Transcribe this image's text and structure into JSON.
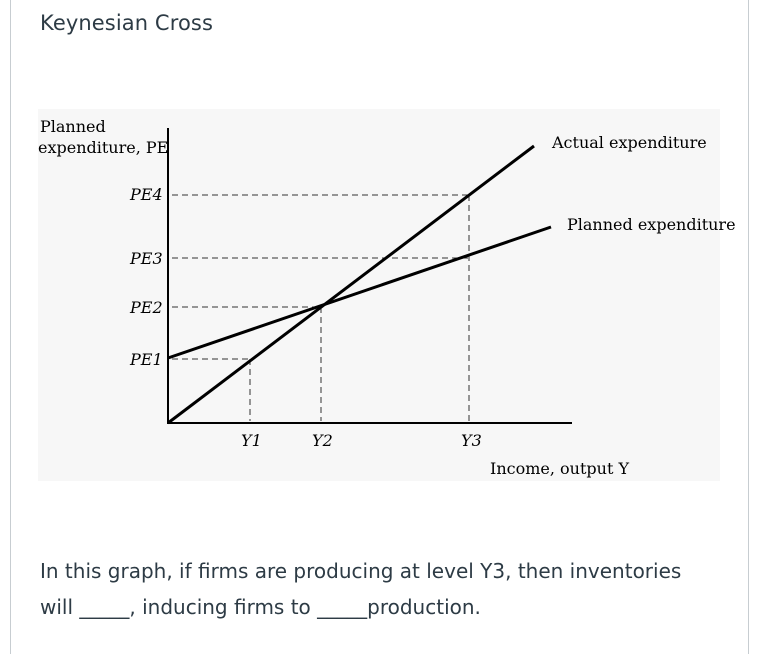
{
  "page": {
    "title": "Keynesian Cross"
  },
  "diagram": {
    "y_axis_label_line1": "Planned",
    "y_axis_label_line2": "expenditure, PE",
    "x_axis_label": "Income, output Y",
    "lines": {
      "actual": "Actual expenditure",
      "planned": "Planned expenditure"
    },
    "y_ticks": [
      "PE4",
      "PE3",
      "PE2",
      "PE1"
    ],
    "x_ticks": [
      "Y1",
      "Y2",
      "Y3"
    ]
  },
  "question": {
    "line1": "In this graph, if firms are producing at level Y3, then inventories",
    "line2_part1": "will _____, inducing firms to _____production."
  },
  "colors": {
    "title_text": "#2d3b45",
    "figure_background": "#f7f7f7",
    "line": "#000000"
  }
}
